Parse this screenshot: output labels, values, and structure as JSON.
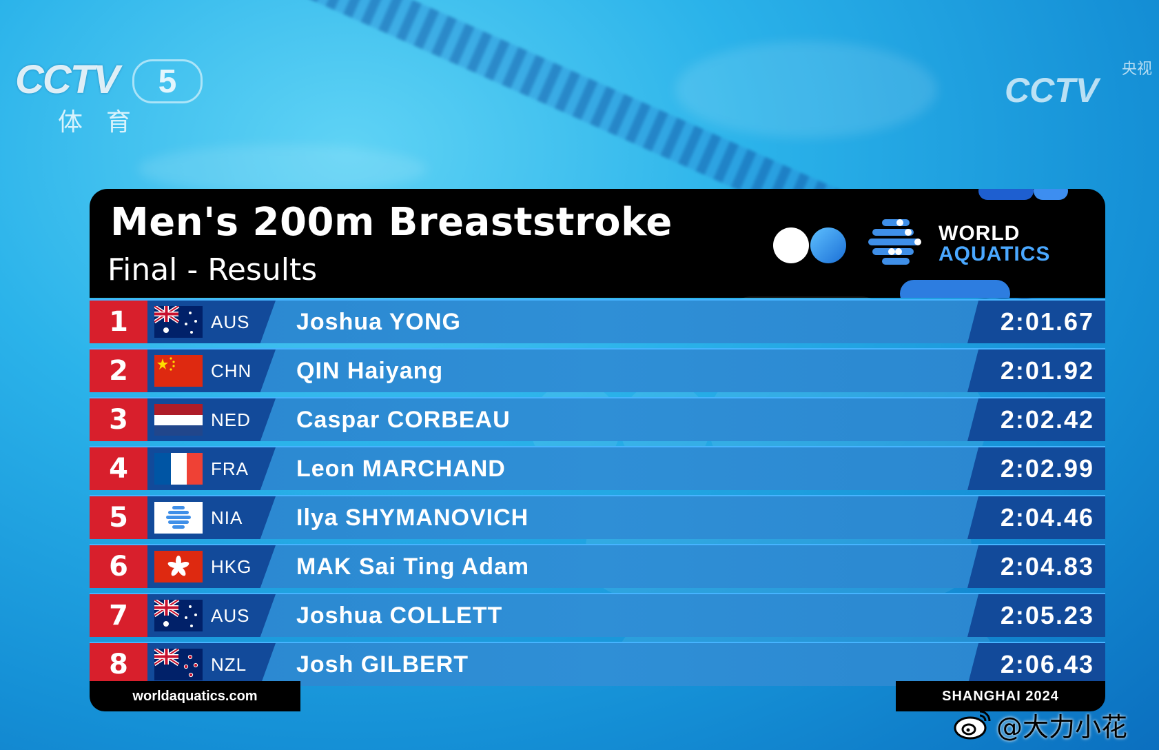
{
  "broadcast": {
    "channel_logo": "CCTV",
    "channel_number": "5",
    "channel_sub": "体育",
    "corner_logo": "CCTV",
    "corner_small": "央视"
  },
  "header": {
    "title": "Men's 200m Breaststroke",
    "subtitle": "Final - Results",
    "brand_line1": "WORLD",
    "brand_line2": "AQUATICS"
  },
  "results": [
    {
      "rank": "1",
      "nation": "AUS",
      "flag": "australia-flag",
      "name": "Joshua YONG",
      "time": "2:01.67"
    },
    {
      "rank": "2",
      "nation": "CHN",
      "flag": "china-flag",
      "name": "QIN Haiyang",
      "time": "2:01.92"
    },
    {
      "rank": "3",
      "nation": "NED",
      "flag": "netherlands-flag",
      "name": "Caspar CORBEAU",
      "time": "2:02.42"
    },
    {
      "rank": "4",
      "nation": "FRA",
      "flag": "france-flag",
      "name": "Leon MARCHAND",
      "time": "2:02.99"
    },
    {
      "rank": "5",
      "nation": "NIA",
      "flag": "world-aquatics-flag",
      "name": "Ilya SHYMANOVICH",
      "time": "2:04.46"
    },
    {
      "rank": "6",
      "nation": "HKG",
      "flag": "hong-kong-flag",
      "name": "MAK Sai Ting Adam",
      "time": "2:04.83"
    },
    {
      "rank": "7",
      "nation": "AUS",
      "flag": "australia-flag",
      "name": "Joshua COLLETT",
      "time": "2:05.23"
    },
    {
      "rank": "8",
      "nation": "NZL",
      "flag": "new-zealand-flag",
      "name": "Josh GILBERT",
      "time": "2:06.43"
    }
  ],
  "footer": {
    "website": "worldaquatics.com",
    "event": "SHANGHAI 2024"
  },
  "watermark": {
    "handle": "@大力小花",
    "icon": "weibo-icon"
  },
  "colors": {
    "rank_red": "#d81f2c",
    "row_blue": "#2f8fd6",
    "panel_navy": "#124a9a",
    "header_black": "#000000",
    "accent_blue": "#4aa8ff"
  }
}
